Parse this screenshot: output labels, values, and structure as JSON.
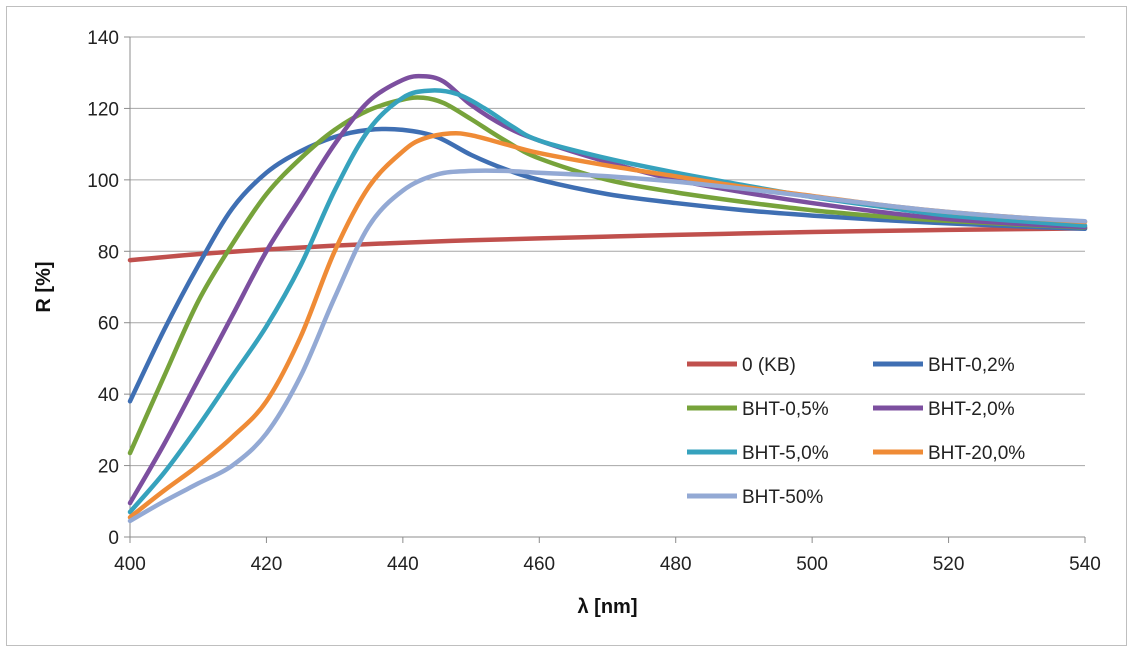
{
  "chart_data": {
    "type": "line",
    "title": "",
    "xlabel": "λ [nm]",
    "ylabel": "R [%]",
    "xlim": [
      400,
      540
    ],
    "ylim": [
      0,
      140
    ],
    "x_ticks": [
      400,
      420,
      440,
      460,
      480,
      500,
      520,
      540
    ],
    "y_ticks": [
      0,
      20,
      40,
      60,
      80,
      100,
      120,
      140
    ],
    "grid": "horizontal",
    "legend": {
      "placement": "lower-right",
      "columns": 2
    },
    "series": [
      {
        "name": "0 (KB)",
        "color": "#c0504d",
        "x": [
          400,
          410,
          420,
          430,
          440,
          450,
          460,
          470,
          480,
          490,
          500,
          510,
          520,
          530,
          540
        ],
        "y": [
          77.5,
          79.2,
          80.5,
          81.6,
          82.4,
          83.1,
          83.6,
          84.1,
          84.6,
          85.0,
          85.4,
          85.7,
          86.0,
          86.2,
          86.4
        ]
      },
      {
        "name": "BHT-0,2%",
        "color": "#3f6fb3",
        "x": [
          400,
          405,
          410,
          415,
          420,
          425,
          430,
          435,
          440,
          445,
          450,
          455,
          460,
          470,
          480,
          490,
          500,
          510,
          520,
          530,
          540
        ],
        "y": [
          38,
          58,
          76,
          92,
          102,
          108,
          112,
          114,
          114,
          112,
          107,
          103,
          100,
          96,
          93.5,
          91.5,
          90,
          88.8,
          87.8,
          87,
          86.3
        ]
      },
      {
        "name": "BHT-0,5%",
        "color": "#77a33b",
        "x": [
          400,
          405,
          410,
          415,
          420,
          425,
          430,
          435,
          440,
          443,
          446,
          450,
          455,
          460,
          470,
          480,
          490,
          500,
          510,
          520,
          530,
          540
        ],
        "y": [
          23.5,
          45,
          66,
          82,
          96,
          106,
          114,
          119.5,
          122.5,
          123,
          121.5,
          117,
          111,
          106,
          100,
          96.5,
          93.8,
          91.5,
          89.8,
          88.5,
          87.5,
          86.7
        ]
      },
      {
        "name": "BHT-2,0%",
        "color": "#7c4f9f",
        "x": [
          400,
          405,
          410,
          415,
          420,
          425,
          430,
          435,
          440,
          443,
          446,
          450,
          455,
          460,
          470,
          480,
          490,
          500,
          510,
          520,
          530,
          540
        ],
        "y": [
          9.5,
          26,
          44,
          62,
          80,
          95,
          110,
          122,
          128,
          129,
          127.5,
          121,
          115,
          111,
          105,
          100,
          96.5,
          93.5,
          91,
          89,
          87.7,
          86.8
        ]
      },
      {
        "name": "BHT-5,0%",
        "color": "#36a2bd",
        "x": [
          400,
          405,
          410,
          415,
          420,
          425,
          430,
          435,
          440,
          444,
          448,
          452,
          456,
          460,
          470,
          480,
          490,
          500,
          510,
          520,
          530,
          540
        ],
        "y": [
          7,
          18,
          31,
          45,
          59,
          76,
          97,
          114,
          123,
          125,
          124,
          120,
          115,
          111,
          106,
          102,
          98.5,
          95.2,
          92.5,
          90,
          88.5,
          87.2
        ]
      },
      {
        "name": "BHT-20,0%",
        "color": "#ef8b36",
        "x": [
          400,
          405,
          410,
          415,
          420,
          425,
          430,
          435,
          440,
          443,
          447,
          450,
          455,
          460,
          470,
          480,
          490,
          500,
          510,
          520,
          530,
          540
        ],
        "y": [
          5.5,
          13,
          20,
          28,
          38,
          56,
          80,
          98,
          108,
          111.5,
          113,
          112.5,
          110,
          107.5,
          104,
          101,
          98,
          95.5,
          93,
          91,
          89.5,
          88.2
        ]
      },
      {
        "name": "BHT-50%",
        "color": "#93a9d4",
        "x": [
          400,
          405,
          410,
          415,
          420,
          425,
          430,
          435,
          440,
          445,
          450,
          455,
          460,
          470,
          480,
          490,
          500,
          510,
          520,
          530,
          540
        ],
        "y": [
          4.5,
          10,
          15,
          20,
          29,
          45,
          67,
          87,
          97,
          101.5,
          102.5,
          102.5,
          102,
          101,
          99.5,
          97.5,
          95.3,
          93,
          91,
          89.5,
          88.4
        ]
      }
    ]
  }
}
